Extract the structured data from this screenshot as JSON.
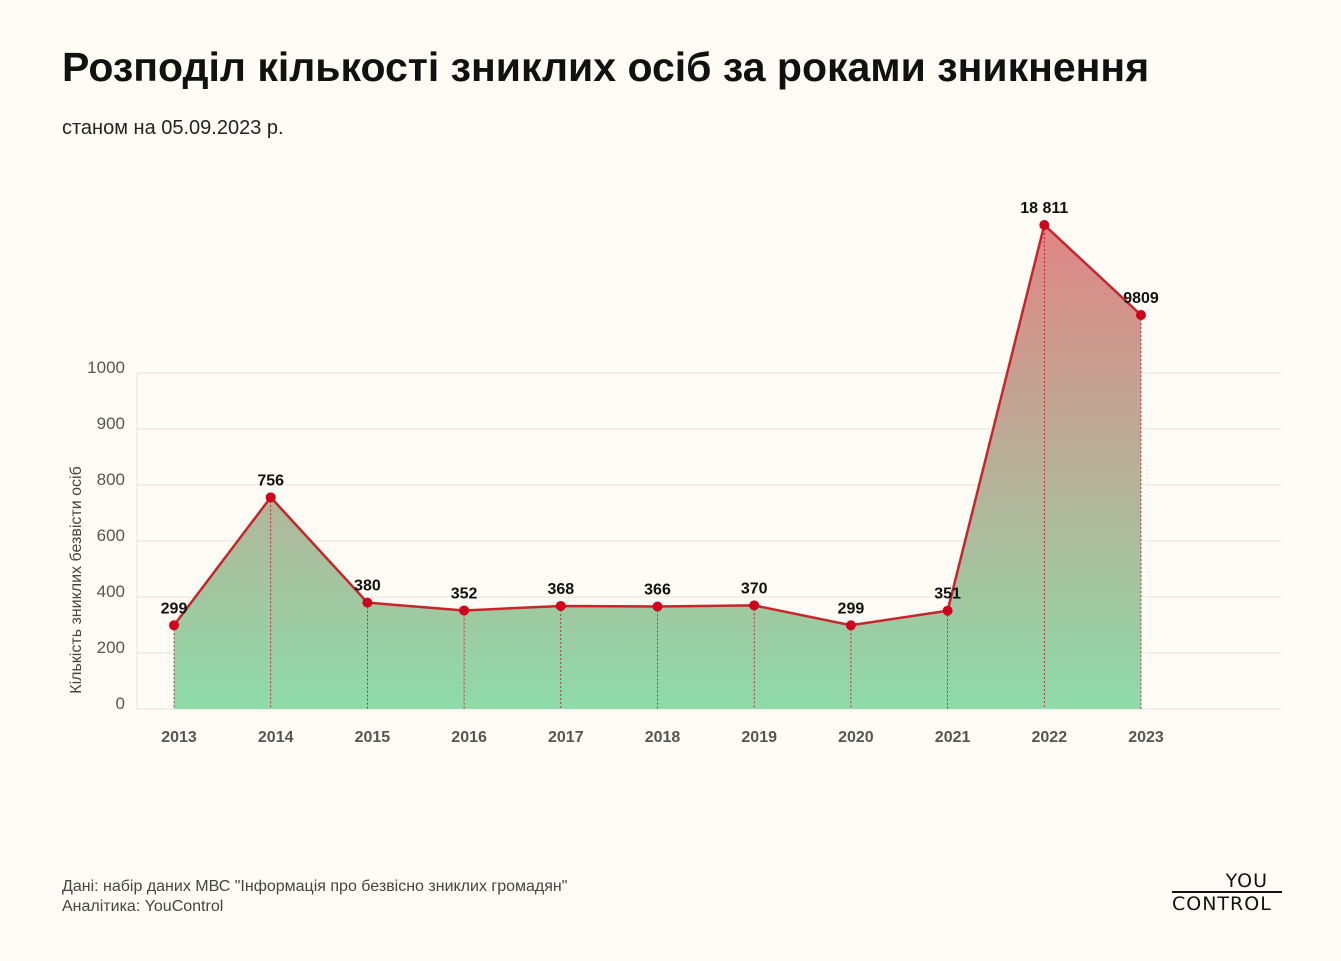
{
  "title": "Розподіл кількості зниклих осіб за роками зникнення",
  "subtitle": "станом на 05.09.2023 р.",
  "source": {
    "line1": "Дані: набір даних МВС \"Інформація про безвісно зниклих громадян\"",
    "line2": "Аналітика: YouControl"
  },
  "logo": {
    "top": "YOU",
    "bottom": "CONTROL"
  },
  "colors": {
    "line": "#c8242c",
    "marker": "#d0021b",
    "fill_top": "#e08585",
    "fill_bottom": "#8edba9",
    "grid": "#e6e3dc"
  },
  "chart_data": {
    "type": "area",
    "title": "Розподіл кількості зниклих осіб за роками зникнення",
    "xlabel": "",
    "ylabel": "Кількість зниклих безвісти осіб",
    "categories": [
      "2013",
      "2014",
      "2015",
      "2016",
      "2017",
      "2018",
      "2019",
      "2020",
      "2021",
      "2022",
      "2023"
    ],
    "values": [
      299,
      756,
      380,
      352,
      368,
      366,
      370,
      299,
      351,
      18811,
      9809
    ],
    "data_labels": [
      "299",
      "756",
      "380",
      "352",
      "368",
      "366",
      "370",
      "299",
      "351",
      "18 811",
      "9809"
    ],
    "y_ticks": [
      "0",
      "200",
      "400",
      "600",
      "800",
      "900",
      "1000"
    ],
    "y_scale": "broken / non-linear",
    "grid": true,
    "legend": "none"
  }
}
